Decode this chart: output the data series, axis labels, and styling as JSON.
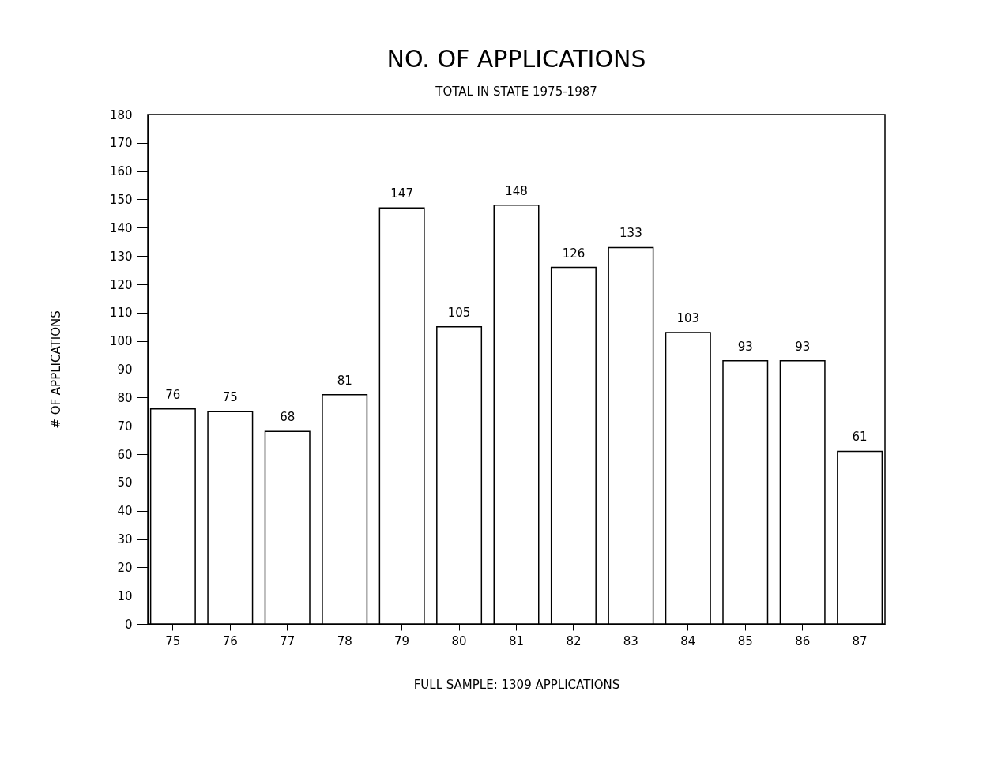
{
  "chart_data": {
    "type": "bar",
    "title": "NO. OF APPLICATIONS",
    "subtitle": "TOTAL IN STATE 1975-1987",
    "xlabel": "FULL SAMPLE: 1309 APPLICATIONS",
    "ylabel": "# OF APPLICATIONS",
    "categories": [
      "75",
      "76",
      "77",
      "78",
      "79",
      "80",
      "81",
      "82",
      "83",
      "84",
      "85",
      "86",
      "87"
    ],
    "values": [
      76,
      75,
      68,
      81,
      147,
      105,
      148,
      126,
      133,
      103,
      93,
      93,
      61
    ],
    "color": "#ffffff",
    "ylim": [
      0,
      180
    ],
    "yticks": [
      0,
      10,
      20,
      30,
      40,
      50,
      60,
      70,
      80,
      90,
      100,
      110,
      120,
      130,
      140,
      150,
      160,
      170,
      180
    ],
    "grid": false,
    "data_labels": true
  }
}
